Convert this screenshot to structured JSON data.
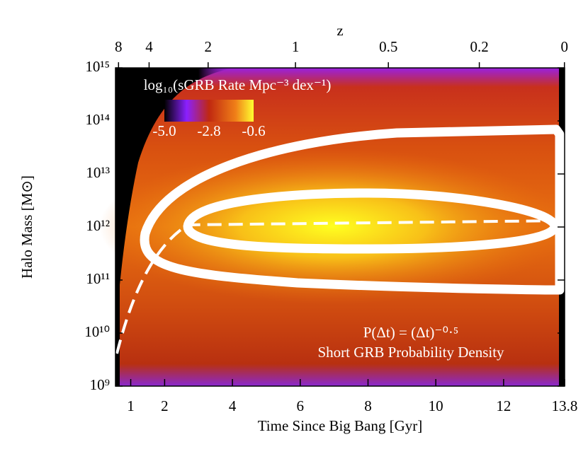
{
  "chart_data": {
    "type": "heatmap",
    "x_label": "Time Since Big Bang [Gyr]",
    "x2_label": "z",
    "y_label": "Halo Mass [M⊙]",
    "xlim": [
      0.55,
      13.8
    ],
    "xticks": [
      1,
      2,
      4,
      6,
      8,
      10,
      12,
      13.8
    ],
    "x2ticks": [
      8,
      4,
      2,
      1,
      0.5,
      0.2,
      0
    ],
    "ylim": [
      1000000000,
      1000000000000000
    ],
    "log_y": true,
    "yticks": [
      {
        "value": 1000000000,
        "label": "10⁹"
      },
      {
        "value": 10000000000,
        "label": "10¹⁰"
      },
      {
        "value": 100000000000,
        "label": "10¹¹"
      },
      {
        "value": 1000000000000,
        "label": "10¹²"
      },
      {
        "value": 10000000000000,
        "label": "10¹³"
      },
      {
        "value": 100000000000000,
        "label": "10¹⁴"
      },
      {
        "value": 1000000000000000,
        "label": "10¹⁵"
      }
    ],
    "colorbar": {
      "label": "log₁₀(sGRB Rate Mpc⁻³ dex⁻¹)",
      "clim": [
        -5.0,
        -0.6
      ],
      "ticks": [
        {
          "value": -5.0,
          "label": "-5.0"
        },
        -2.8,
        -0.6
      ]
    },
    "annotations": [
      "P(Δt) = (Δt)⁻⁰·⁵",
      "Short GRB Probability Density"
    ]
  }
}
